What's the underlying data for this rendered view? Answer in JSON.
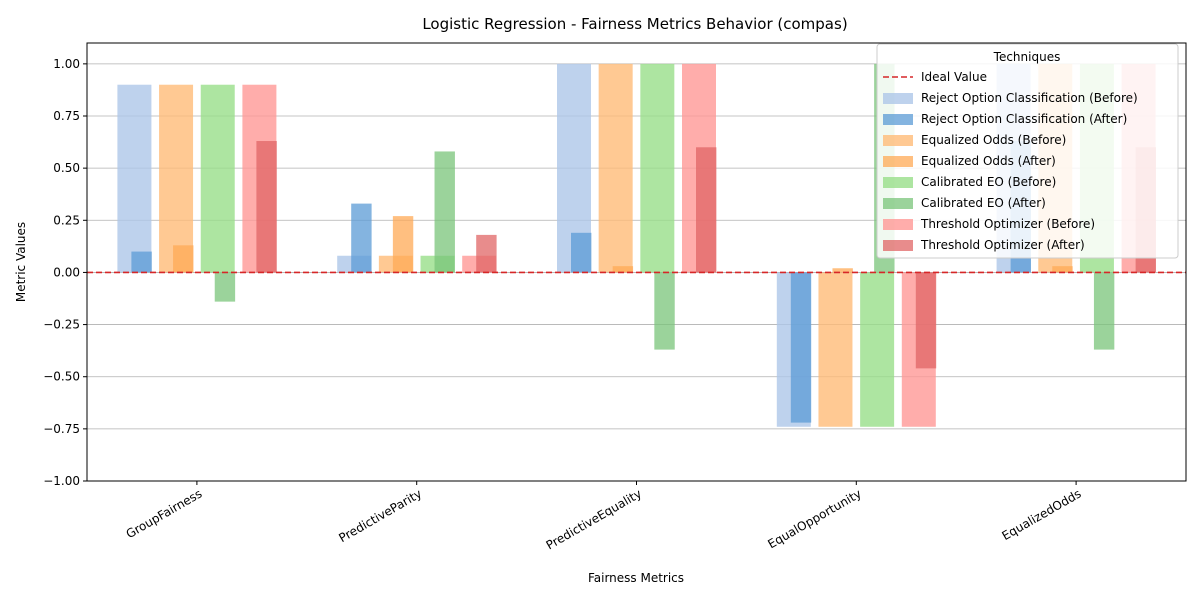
{
  "chart_data": {
    "type": "bar",
    "title": "Logistic Regression - Fairness Metrics Behavior (compas)",
    "xlabel": "Fairness Metrics",
    "ylabel": "Metric Values",
    "ylim": [
      -1.0,
      1.1
    ],
    "yticks": [
      -1.0,
      -0.75,
      -0.5,
      -0.25,
      0.0,
      0.25,
      0.5,
      0.75,
      1.0
    ],
    "ytick_labels": [
      "−1.00",
      "−0.75",
      "−0.50",
      "−0.25",
      "0.00",
      "0.25",
      "0.50",
      "0.75",
      "1.00"
    ],
    "grid": "horizontal",
    "ideal_value": 0,
    "ideal_label": "Ideal Value",
    "categories": [
      "GroupFairness",
      "PredictiveParity",
      "PredictiveEquality",
      "EqualOpportunity",
      "EqualizedOdds"
    ],
    "legend": {
      "title": "Techniques",
      "placement": "top-right"
    },
    "series": [
      {
        "name": "Reject Option Classification (Before)",
        "stage": "before",
        "color": "#aec7e8",
        "values": [
          0.9,
          0.08,
          1.0,
          -0.74,
          1.0
        ]
      },
      {
        "name": "Reject Option Classification (After)",
        "stage": "after",
        "color": "#5b9bd5",
        "values": [
          0.1,
          0.33,
          0.19,
          -0.72,
          0.63
        ]
      },
      {
        "name": "Equalized Odds (Before)",
        "stage": "before",
        "color": "#ffbb78",
        "values": [
          0.9,
          0.08,
          1.0,
          -0.74,
          1.0
        ]
      },
      {
        "name": "Equalized Odds (After)",
        "stage": "after",
        "color": "#ffaa55",
        "values": [
          0.13,
          0.27,
          0.03,
          0.02,
          0.03
        ]
      },
      {
        "name": "Calibrated EO (Before)",
        "stage": "before",
        "color": "#98df8a",
        "values": [
          0.9,
          0.08,
          1.0,
          -0.74,
          1.0
        ]
      },
      {
        "name": "Calibrated EO (After)",
        "stage": "after",
        "color": "#7ac47a",
        "values": [
          -0.14,
          0.58,
          -0.37,
          1.0,
          -0.37
        ]
      },
      {
        "name": "Threshold Optimizer (Before)",
        "stage": "before",
        "color": "#ff9896",
        "values": [
          0.9,
          0.08,
          1.0,
          -0.74,
          1.0
        ]
      },
      {
        "name": "Threshold Optimizer (After)",
        "stage": "after",
        "color": "#e06666",
        "values": [
          0.63,
          0.18,
          0.6,
          -0.46,
          0.6
        ]
      }
    ]
  }
}
